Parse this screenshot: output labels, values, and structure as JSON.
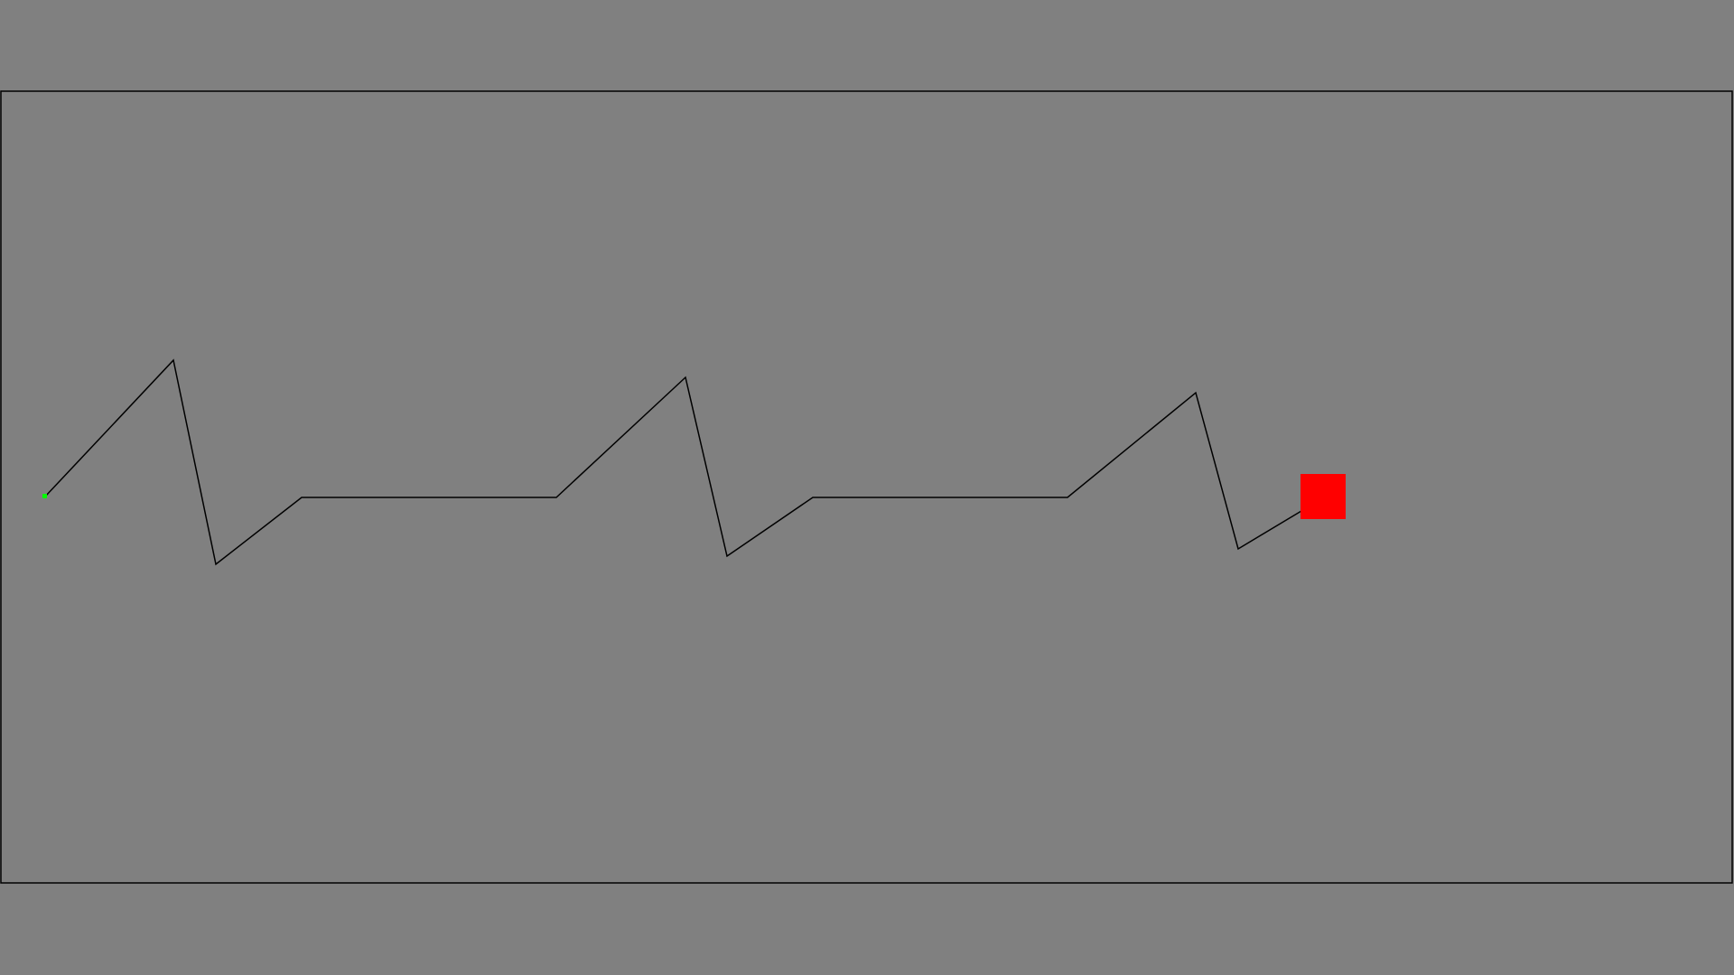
{
  "scene": {
    "background_color": "#808080",
    "arena": {
      "border_color": "#000000",
      "fill_color": "#808080"
    },
    "path": {
      "stroke_color": "#000000",
      "description_segments": "zigzag-trail"
    },
    "start_marker": {
      "color": "#00ff00",
      "shape": "dot"
    },
    "player": {
      "color": "#ff0000",
      "shape": "square"
    }
  }
}
